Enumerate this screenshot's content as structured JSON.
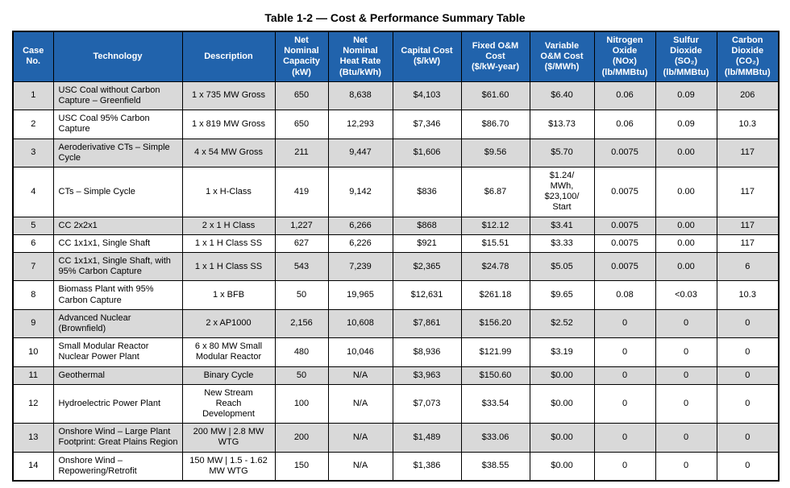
{
  "title": "Table 1-2 — Cost & Performance Summary Table",
  "colors": {
    "header_bg": "#2163AC",
    "header_text": "#FFFFFF",
    "row_alt_bg": "#D9D9D9",
    "border": "#000000"
  },
  "table": {
    "columns": [
      {
        "id": "case-no",
        "label": "Case\nNo."
      },
      {
        "id": "technology",
        "label": "Technology"
      },
      {
        "id": "description",
        "label": "Description"
      },
      {
        "id": "net-nominal-capacity",
        "label": "Net\nNominal\nCapacity\n(kW)"
      },
      {
        "id": "net-nominal-heat-rate",
        "label": "Net\nNominal\nHeat Rate\n(Btu/kWh)"
      },
      {
        "id": "capital-cost",
        "label": "Capital Cost\n($/kW)"
      },
      {
        "id": "fixed-om-cost",
        "label": "Fixed O&M\nCost\n($/kW-year)"
      },
      {
        "id": "variable-om-cost",
        "label": "Variable\nO&M Cost\n($/MWh)"
      },
      {
        "id": "nitrogen-oxide",
        "label": "Nitrogen\nOxide\n(NOx)\n(lb/MMBtu)"
      },
      {
        "id": "sulfur-dioxide",
        "label": "Sulfur\nDioxide\n(SO₂)\n(lb/MMBtu)"
      },
      {
        "id": "carbon-dioxide",
        "label": "Carbon\nDioxide\n(CO₂)\n(lb/MMBtu)"
      }
    ],
    "rows": [
      {
        "cells": [
          "1",
          "USC Coal without Carbon Capture – Greenfield",
          "1 x 735 MW Gross",
          "650",
          "8,638",
          "$4,103",
          "$61.60",
          "$6.40",
          "0.06",
          "0.09",
          "206"
        ]
      },
      {
        "cells": [
          "2",
          "USC Coal 95% Carbon Capture",
          "1 x 819 MW Gross",
          "650",
          "12,293",
          "$7,346",
          "$86.70",
          "$13.73",
          "0.06",
          "0.09",
          "10.3"
        ]
      },
      {
        "cells": [
          "3",
          "Aeroderivative CTs – Simple Cycle",
          "4 x 54 MW Gross",
          "211",
          "9,447",
          "$1,606",
          "$9.56",
          "$5.70",
          "0.0075",
          "0.00",
          "117"
        ]
      },
      {
        "cells": [
          "4",
          "CTs – Simple Cycle",
          "1 x H-Class",
          "419",
          "9,142",
          "$836",
          "$6.87",
          "$1.24/\nMWh,\n$23,100/\nStart",
          "0.0075",
          "0.00",
          "117"
        ]
      },
      {
        "cells": [
          "5",
          "CC 2x2x1",
          "2 x 1 H Class",
          "1,227",
          "6,266",
          "$868",
          "$12.12",
          "$3.41",
          "0.0075",
          "0.00",
          "117"
        ]
      },
      {
        "cells": [
          "6",
          "CC 1x1x1, Single Shaft",
          "1 x 1 H Class SS",
          "627",
          "6,226",
          "$921",
          "$15.51",
          "$3.33",
          "0.0075",
          "0.00",
          "117"
        ]
      },
      {
        "cells": [
          "7",
          "CC 1x1x1, Single Shaft, with 95% Carbon Capture",
          "1 x 1 H Class SS",
          "543",
          "7,239",
          "$2,365",
          "$24.78",
          "$5.05",
          "0.0075",
          "0.00",
          "6"
        ]
      },
      {
        "cells": [
          "8",
          "Biomass Plant with 95% Carbon Capture",
          "1 x BFB",
          "50",
          "19,965",
          "$12,631",
          "$261.18",
          "$9.65",
          "0.08",
          "<0.03",
          "10.3"
        ]
      },
      {
        "cells": [
          "9",
          "Advanced Nuclear (Brownfield)",
          "2 x AP1000",
          "2,156",
          "10,608",
          "$7,861",
          "$156.20",
          "$2.52",
          "0",
          "0",
          "0"
        ]
      },
      {
        "cells": [
          "10",
          "Small Modular Reactor Nuclear Power Plant",
          "6 x 80 MW Small Modular Reactor",
          "480",
          "10,046",
          "$8,936",
          "$121.99",
          "$3.19",
          "0",
          "0",
          "0"
        ]
      },
      {
        "cells": [
          "11",
          "Geothermal",
          "Binary Cycle",
          "50",
          "N/A",
          "$3,963",
          "$150.60",
          "$0.00",
          "0",
          "0",
          "0"
        ]
      },
      {
        "cells": [
          "12",
          "Hydroelectric Power Plant",
          "New Stream\nReach\nDevelopment",
          "100",
          "N/A",
          "$7,073",
          "$33.54",
          "$0.00",
          "0",
          "0",
          "0"
        ]
      },
      {
        "cells": [
          "13",
          "Onshore Wind – Large Plant Footprint: Great Plains Region",
          "200 MW | 2.8 MW WTG",
          "200",
          "N/A",
          "$1,489",
          "$33.06",
          "$0.00",
          "0",
          "0",
          "0"
        ]
      },
      {
        "cells": [
          "14",
          "Onshore Wind – Repowering/Retrofit",
          "150 MW | 1.5 - 1.62 MW WTG",
          "150",
          "N/A",
          "$1,386",
          "$38.55",
          "$0.00",
          "0",
          "0",
          "0"
        ]
      }
    ]
  }
}
